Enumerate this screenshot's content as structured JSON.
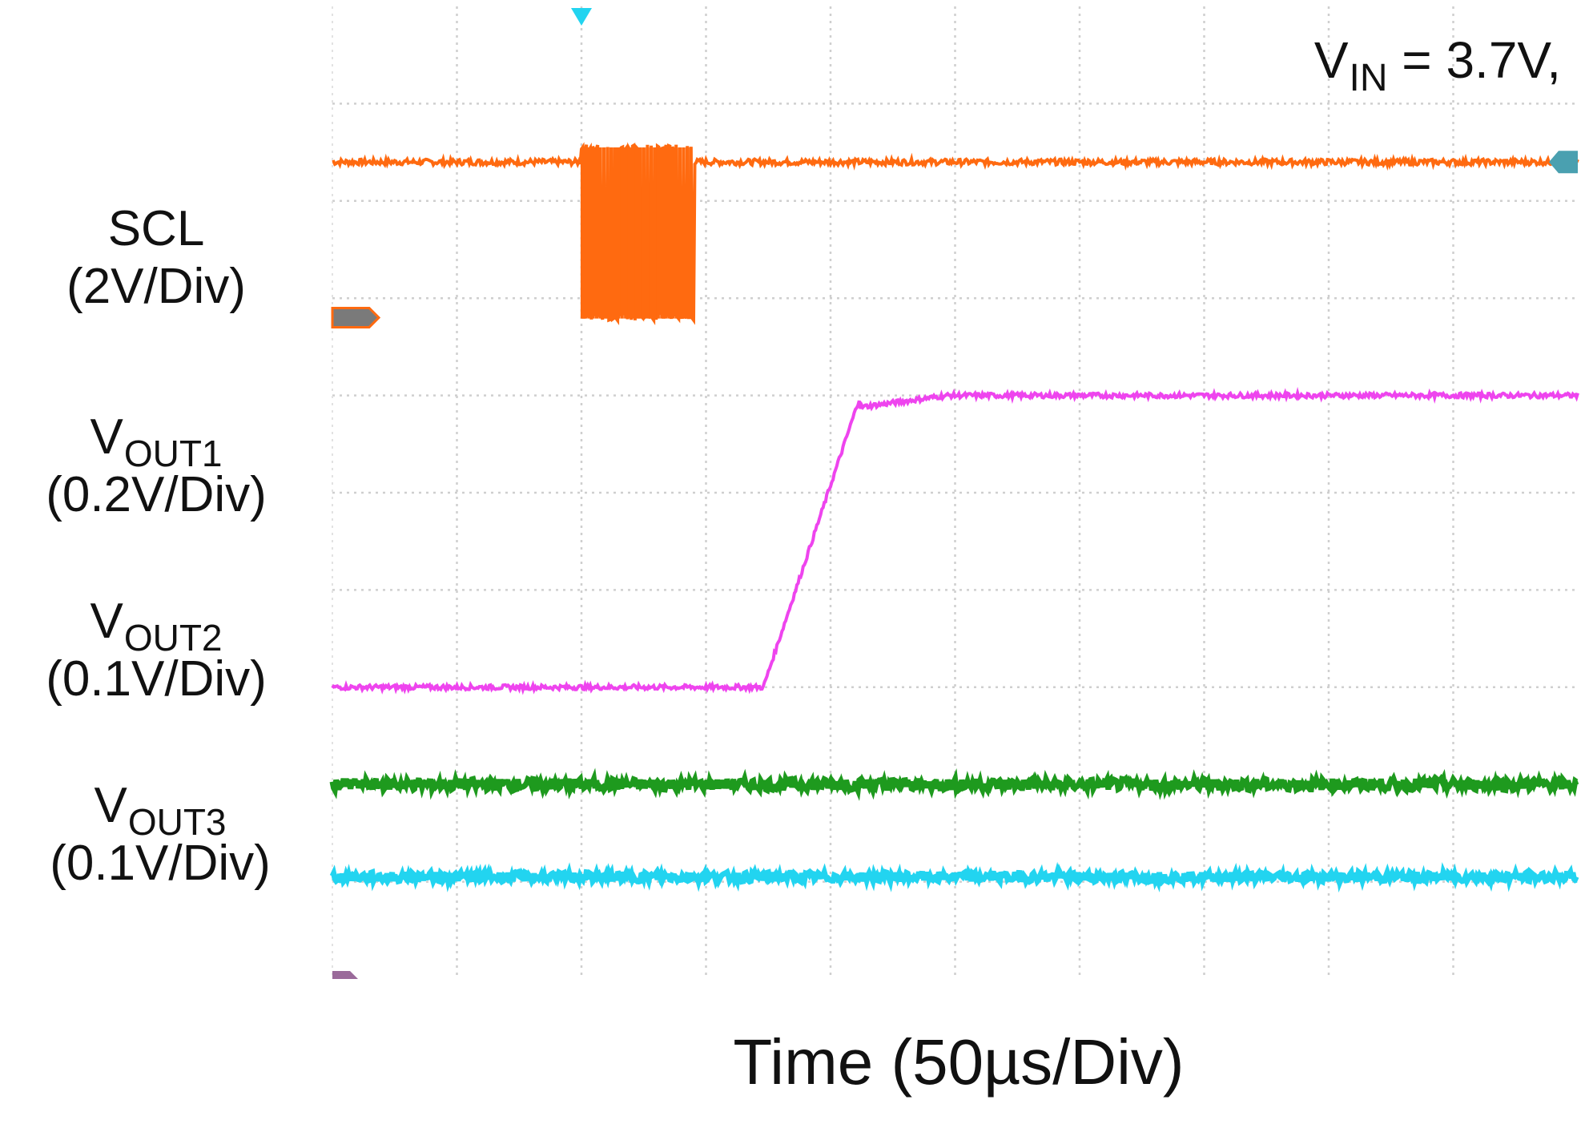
{
  "chart_data": {
    "type": "line",
    "annotation": {
      "symbol": "V",
      "subscript": "IN",
      "suffix": " = 3.7V,"
    },
    "xlabel": "Time (50µs/Div)",
    "xlim": [
      0,
      500
    ],
    "x_divisions": 10,
    "y_divisions": 10,
    "grid": true,
    "channels": [
      {
        "id": "scl",
        "label_main": "SCL",
        "label_sub": "",
        "scale": "(2V/Div)",
        "color": "#ff6a10",
        "baseline_div": 8.4,
        "burst": {
          "x_start": 100,
          "x_end": 145,
          "low_div": 6.8,
          "cycles": 31
        }
      },
      {
        "id": "vout1",
        "label_main": "V",
        "label_sub": "OUT1",
        "scale": "(0.2V/Div)",
        "color": "#ee44ee",
        "low_div": 3.0,
        "high_div": 6.0,
        "ramp_start": 173,
        "ramp_end": 212
      },
      {
        "id": "vout2",
        "label_main": "V",
        "label_sub": "OUT2",
        "scale": "(0.1V/Div)",
        "color": "#ee44ee"
      },
      {
        "id": "vout3",
        "label_main": "V",
        "label_sub": "OUT3",
        "scale": "(0.1V/Div)",
        "color": "#1e9a1e",
        "level_div": 2.0
      },
      {
        "id": "vout4",
        "color": "#22d4f0",
        "level_div": 1.05
      }
    ],
    "trigger_x": 100
  }
}
